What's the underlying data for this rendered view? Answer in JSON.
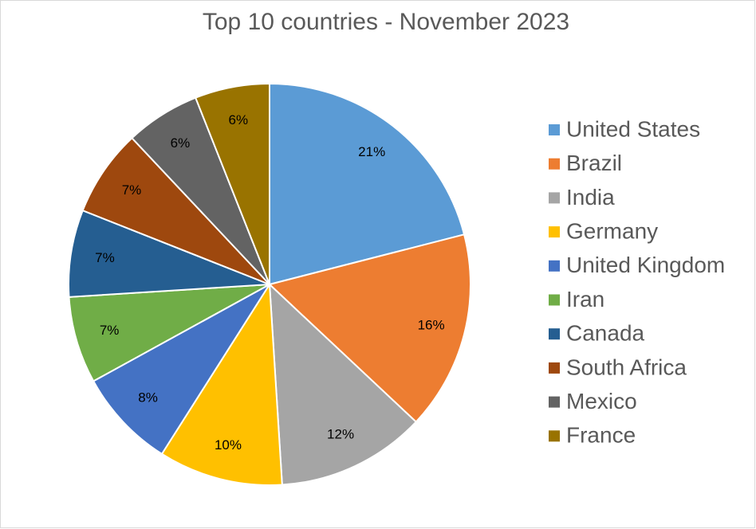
{
  "chart_data": {
    "type": "pie",
    "title": "Top 10 countries - November 2023",
    "categories": [
      "United States",
      "Brazil",
      "India",
      "Germany",
      "United Kingdom",
      "Iran",
      "Canada",
      "South Africa",
      "Mexico",
      "France"
    ],
    "values": [
      21,
      16,
      12,
      10,
      8,
      7,
      7,
      7,
      6,
      6
    ],
    "value_labels": [
      "21%",
      "16%",
      "12%",
      "10%",
      "8%",
      "7%",
      "7%",
      "7%",
      "6%",
      "6%"
    ],
    "colors": [
      "#5b9bd5",
      "#ed7d31",
      "#a5a5a5",
      "#ffc000",
      "#4472c4",
      "#70ad47",
      "#255e91",
      "#9e480e",
      "#636363",
      "#997300"
    ],
    "legend": "right"
  }
}
